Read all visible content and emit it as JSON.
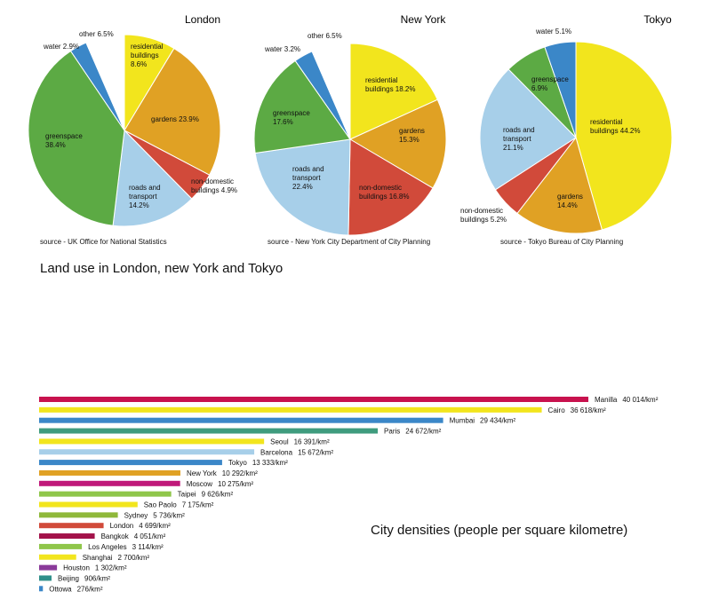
{
  "chart_data": [
    {
      "type": "pie",
      "title": "London",
      "source": "source - UK Office for National Statistics",
      "slices": [
        {
          "label": "residential buildings",
          "value": 8.6,
          "text": [
            "residential",
            "buildings",
            "8.6%"
          ],
          "color": "#f2e51d"
        },
        {
          "label": "gardens",
          "value": 23.9,
          "text": [
            "gardens 23.9%"
          ],
          "color": "#e0a124"
        },
        {
          "label": "non-domestic buildings",
          "value": 4.9,
          "text": [
            "non-domestic",
            "buildings 4.9%"
          ],
          "color": "#d14a3a"
        },
        {
          "label": "roads and transport",
          "value": 14.2,
          "text": [
            "roads and",
            "transport",
            "14.2%"
          ],
          "color": "#a7cfe9"
        },
        {
          "label": "greenspace",
          "value": 38.4,
          "text": [
            "greenspace",
            "38.4%"
          ],
          "color": "#5caa44"
        },
        {
          "label": "water",
          "value": 2.9,
          "text": [
            "water 2.9%"
          ],
          "color": "#3b87c8"
        },
        {
          "label": "other",
          "value": 6.5,
          "text": [
            "other 6.5%"
          ],
          "color": "#ffffff"
        }
      ]
    },
    {
      "type": "pie",
      "title": "New York",
      "source": "source - New York City Department of City Planning",
      "slices": [
        {
          "label": "residential buildings",
          "value": 18.2,
          "text": [
            "residential",
            "buildings 18.2%"
          ],
          "color": "#f2e51d"
        },
        {
          "label": "gardens",
          "value": 15.3,
          "text": [
            "gardens",
            "15.3%"
          ],
          "color": "#e0a124"
        },
        {
          "label": "non-domestic buildings",
          "value": 16.8,
          "text": [
            "non-domestic",
            "buildings 16.8%"
          ],
          "color": "#d14a3a"
        },
        {
          "label": "roads and transport",
          "value": 22.4,
          "text": [
            "roads and",
            "transport",
            "22.4%"
          ],
          "color": "#a7cfe9"
        },
        {
          "label": "greenspace",
          "value": 17.6,
          "text": [
            "greenspace",
            "17.6%"
          ],
          "color": "#5caa44"
        },
        {
          "label": "water",
          "value": 3.2,
          "text": [
            "water 3.2%"
          ],
          "color": "#3b87c8"
        },
        {
          "label": "other",
          "value": 6.5,
          "text": [
            "other 6.5%"
          ],
          "color": "#ffffff"
        }
      ]
    },
    {
      "type": "pie",
      "title": "Tokyo",
      "source": "source - Tokyo Bureau of City Planning",
      "slices": [
        {
          "label": "residential buildings",
          "value": 44.2,
          "text": [
            "residential",
            "buildings 44.2%"
          ],
          "color": "#f2e51d"
        },
        {
          "label": "gardens",
          "value": 14.4,
          "text": [
            "gardens",
            "14.4%"
          ],
          "color": "#e0a124"
        },
        {
          "label": "non-domestic buildings",
          "value": 5.2,
          "text": [
            "non-domestic",
            "buildings 5.2%"
          ],
          "color": "#d14a3a"
        },
        {
          "label": "roads and transport",
          "value": 21.1,
          "text": [
            "roads and",
            "transport",
            "21.1%"
          ],
          "color": "#a7cfe9"
        },
        {
          "label": "greenspace",
          "value": 6.9,
          "text": [
            "greenspace",
            "6.9%"
          ],
          "color": "#5caa44"
        },
        {
          "label": "water",
          "value": 5.1,
          "text": [
            "water 5.1%"
          ],
          "color": "#3b87c8"
        }
      ]
    },
    {
      "type": "bar",
      "orientation": "horizontal",
      "title": "City densities (people per square kilometre)",
      "categories": [
        "Manilla",
        "Cairo",
        "Mumbai",
        "Paris",
        "Seoul",
        "Barcelona",
        "Tokyo",
        "New York",
        "Moscow",
        "Taipei",
        "Sao Paolo",
        "Sydney",
        "London",
        "Bangkok",
        "Los Angeles",
        "Shanghai",
        "Houston",
        "Beijing",
        "Ottowa"
      ],
      "values": [
        40014,
        36618,
        29434,
        24672,
        16391,
        15672,
        13333,
        10292,
        10275,
        9626,
        7175,
        5736,
        4699,
        4051,
        3114,
        2700,
        1302,
        906,
        276
      ],
      "value_labels": [
        "40 014/km²",
        "36 618/km²",
        "29 434/km²",
        "24 672/km²",
        "16 391/km²",
        "15 672/km²",
        "13 333/km²",
        "10 292/km²",
        "10 275/km²",
        "9 626/km²",
        "7 175/km²",
        "5 736/km²",
        "4 699/km²",
        "4 051/km²",
        "3 114/km²",
        "2 700/km²",
        "1 302/km²",
        "906/km²",
        "276/km²"
      ],
      "colors": [
        "#c8124e",
        "#f2e51d",
        "#3b87c8",
        "#3f9c7e",
        "#f2e51d",
        "#a7cfe9",
        "#3b87c8",
        "#e0a124",
        "#c0197a",
        "#8fc64a",
        "#f2e51d",
        "#8fb83a",
        "#d14a3a",
        "#a3124a",
        "#8fc64a",
        "#f2e51d",
        "#8a3a9a",
        "#2f8f8a",
        "#3b87c8"
      ]
    }
  ],
  "caption": "Land use in London, new York and Tokyo"
}
